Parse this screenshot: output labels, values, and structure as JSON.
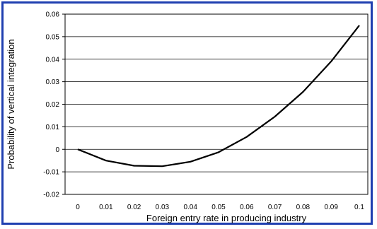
{
  "chart_data": {
    "type": "line",
    "title": "",
    "xlabel": "Foreign entry rate in producing industry",
    "ylabel": "Probability of vertical integration",
    "xlim": [
      0,
      0.1
    ],
    "ylim": [
      -0.02,
      0.06
    ],
    "x_ticks": [
      "0",
      "0.01",
      "0.02",
      "0.03",
      "0.04",
      "0.05",
      "0.06",
      "0.07",
      "0.08",
      "0.09",
      "0.1"
    ],
    "y_ticks": [
      "-0.02",
      "-0.01",
      "0",
      "0.01",
      "0.02",
      "0.03",
      "0.04",
      "0.05",
      "0.06"
    ],
    "grid": true,
    "series": [
      {
        "x": [
          0,
          0.01,
          0.02,
          0.03,
          0.04,
          0.05,
          0.06,
          0.07,
          0.08,
          0.09,
          0.1
        ],
        "values": [
          0,
          -0.005,
          -0.0073,
          -0.0075,
          -0.0055,
          -0.0013,
          0.0055,
          0.0145,
          0.0255,
          0.039,
          0.055
        ]
      }
    ],
    "colors": {
      "line": "#000000",
      "grid": "#000000",
      "frame": "#1f3fb0"
    }
  }
}
